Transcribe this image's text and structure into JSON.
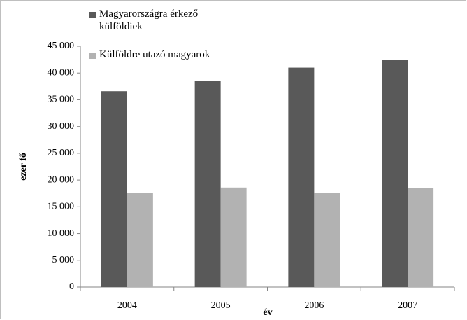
{
  "chart_data": {
    "type": "bar",
    "categories": [
      "2004",
      "2005",
      "2006",
      "2007"
    ],
    "series": [
      {
        "name": "Magyarországra érkező külföldiek",
        "color": "#595959",
        "values": [
          36600,
          38500,
          41000,
          42400
        ]
      },
      {
        "name": "Külföldre utazó magyarok",
        "color": "#b2b2b2",
        "values": [
          17600,
          18600,
          17600,
          18500
        ]
      }
    ],
    "ylim": [
      0,
      45000
    ],
    "yticks": [
      0,
      {
        "value": 5000,
        "label": "5 000"
      },
      {
        "value": 10000,
        "label": "10 000"
      },
      {
        "value": 15000,
        "label": "15 000"
      },
      {
        "value": 20000,
        "label": "20 000"
      },
      {
        "value": 25000,
        "label": "25 000"
      },
      {
        "value": 30000,
        "label": "30 000"
      },
      {
        "value": 35000,
        "label": "35 000"
      },
      {
        "value": 40000,
        "label": "40 000"
      },
      {
        "value": 45000,
        "label": "45 000"
      }
    ],
    "xlabel": "év",
    "ylabel": "ezer fő",
    "grid": false,
    "legend": "top-left"
  }
}
